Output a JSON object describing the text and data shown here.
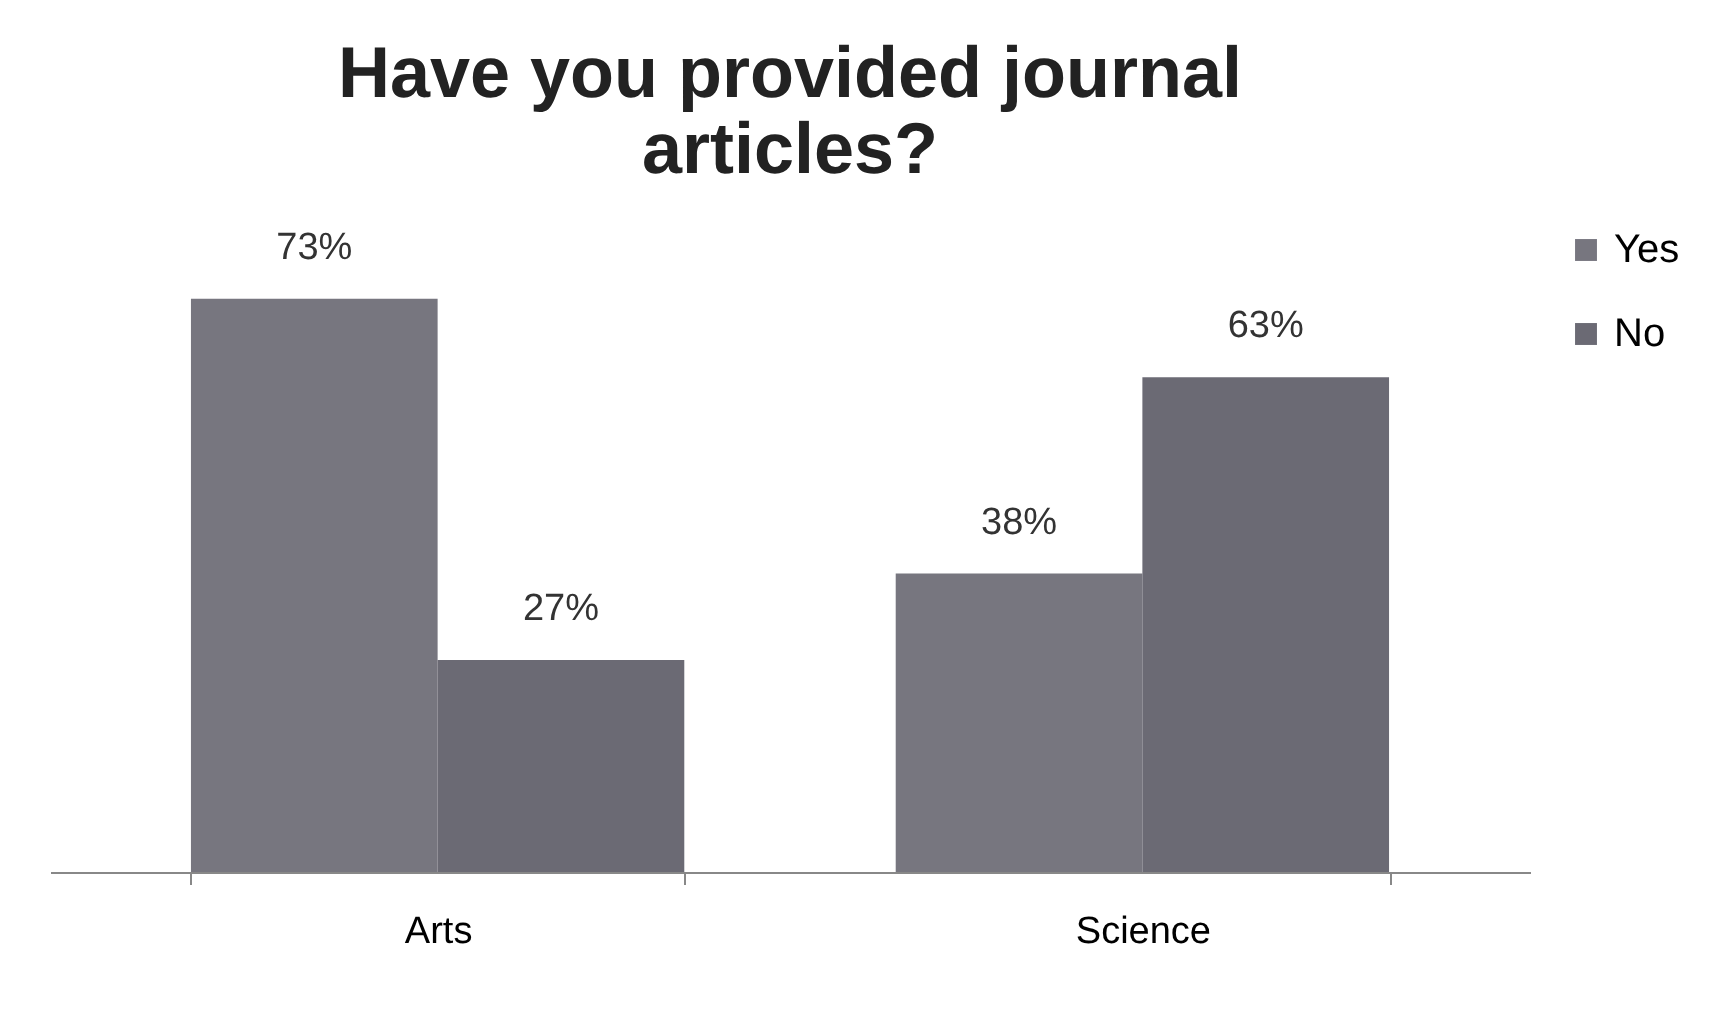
{
  "chart_data": {
    "type": "bar",
    "title": "Have you provided journal articles?",
    "categories": [
      "Arts",
      "Science"
    ],
    "series": [
      {
        "name": "Yes",
        "color": "#77767f",
        "values": [
          73,
          38
        ],
        "value_labels": [
          "73%",
          "38%"
        ]
      },
      {
        "name": "No",
        "color": "#6b6a74",
        "values": [
          27,
          63
        ],
        "value_labels": [
          "27%",
          "63%"
        ]
      }
    ],
    "legend": "right",
    "tick_labels": "x"
  }
}
